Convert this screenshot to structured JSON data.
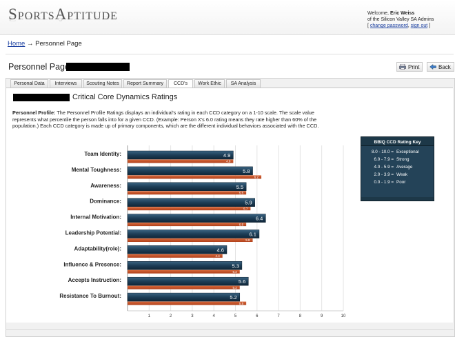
{
  "brand": {
    "logo_text": "SportsAptitude"
  },
  "welcome": {
    "line1_prefix": "Welcome, ",
    "user_name": "Eric Weiss",
    "line2": "of the Silicon Valley SA Admins",
    "change_password": "change password",
    "sign_out": "sign out"
  },
  "breadcrumb": {
    "home": "Home",
    "arrow": "→",
    "current": "Personnel Page"
  },
  "page": {
    "title": "Personnel Page:"
  },
  "toolbar": {
    "print_label": "Print",
    "back_label": "Back"
  },
  "tabs": [
    {
      "label": "Personal Data",
      "active": false
    },
    {
      "label": "Interviews",
      "active": false
    },
    {
      "label": "Scouting Notes",
      "active": false
    },
    {
      "label": "Report Summary",
      "active": false
    },
    {
      "label": "CCD's",
      "active": true
    },
    {
      "label": "Work Ethic",
      "active": false
    },
    {
      "label": "SA Analysis",
      "active": false
    }
  ],
  "section": {
    "title": "Critical Core Dynamics Ratings",
    "profile_label": "Personnel Profile:",
    "profile_text": " The Personnel Profile Ratings displays an individual's rating in each CCD category on a 1-10 scale. The scale value represents what percentile the person falls into for a given CCD. (Example: Person X's 6.0 rating means they rate higher than 60% of the population.) Each CCD category is made up of primary components, which are the different individual behaviors associated with the CCD."
  },
  "rating_key": {
    "title": "BBIQ CCD Rating Key",
    "rows": [
      {
        "range": "8.0 - 10.0 =",
        "label": "Exceptional"
      },
      {
        "range": "6.0 - 7.9 =",
        "label": "Strong"
      },
      {
        "range": "4.0 - 5.9 =",
        "label": "Average"
      },
      {
        "range": "2.0 - 3.9 =",
        "label": "Weak"
      },
      {
        "range": "0.0 - 1.9 =",
        "label": "Poor"
      }
    ]
  },
  "colors": {
    "bar_primary": "#1d3e57",
    "bar_secondary": "#b0401a",
    "key_bg": "#1d3848"
  },
  "chart_data": {
    "type": "bar",
    "orientation": "horizontal",
    "categories": [
      "Team Identity:",
      "Mental Toughness:",
      "Awareness:",
      "Dominance:",
      "Internal Motivation:",
      "Leadership Potential:",
      "Adaptability(role):",
      "Influence & Presence:",
      "Accepts Instruction:",
      "Resistance To Burnout:"
    ],
    "series": [
      {
        "values": [
          4.9,
          5.8,
          5.5,
          5.9,
          6.4,
          6.1,
          4.6,
          5.3,
          5.6,
          5.2
        ],
        "labels": [
          "4.9",
          "5.8",
          "5.5",
          "5.9",
          "6.4",
          "6.1",
          "4.6",
          "5.3",
          "5.6",
          "5.2"
        ]
      },
      {
        "values": [
          4.9,
          6.2,
          5.5,
          5.7,
          5.5,
          5.8,
          4.4,
          5.2,
          5.2,
          5.5
        ],
        "labels": [
          "4.9",
          "6.2",
          "5.5",
          "5.7",
          "5.5",
          "5.8",
          "4.4",
          "5.2",
          "5.2",
          "5.5"
        ]
      }
    ],
    "x_ticks": [
      "1",
      "2",
      "3",
      "4",
      "5",
      "6",
      "7",
      "8",
      "9",
      "10"
    ],
    "xlim": [
      0,
      10
    ],
    "grid": true
  }
}
